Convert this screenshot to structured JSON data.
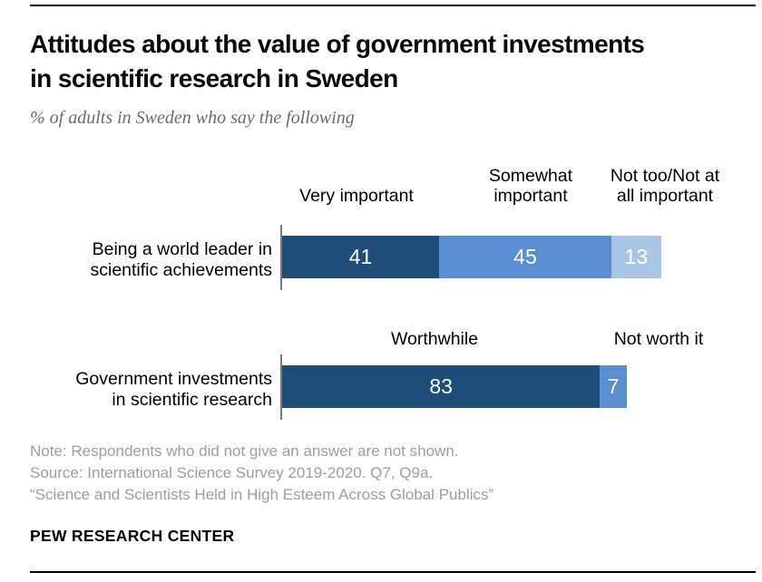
{
  "header": {
    "title_line1": "Attitudes about the value of government investments",
    "title_line2": "in scientific research in Sweden",
    "subtitle": "% of adults in Sweden who say the following"
  },
  "chart_data": {
    "type": "bar",
    "orientation": "horizontal_stacked",
    "unit": "percent",
    "xlim": [
      0,
      100
    ],
    "grid": false,
    "legend_position": "column-headers-above-bars",
    "colors": [
      "#1f4d7a",
      "#5a8ed2",
      "#a9c6e8"
    ],
    "value_label_color": "#ffffff",
    "rows": [
      {
        "category": "Being a world leader in scientific achievements",
        "category_lines": [
          "Being a world leader in",
          "scientific achievements"
        ],
        "series": [
          {
            "name": "Very important",
            "name_lines": [
              "Very important"
            ],
            "value": 41
          },
          {
            "name": "Somewhat important",
            "name_lines": [
              "Somewhat",
              "important"
            ],
            "value": 45
          },
          {
            "name": "Not too/Not at all important",
            "name_lines": [
              "Not too/Not at",
              "all important"
            ],
            "value": 13
          }
        ]
      },
      {
        "category": "Government investments in scientific research",
        "category_lines": [
          "Government investments",
          "in scientific research"
        ],
        "series": [
          {
            "name": "Worthwhile",
            "name_lines": [
              "Worthwhile"
            ],
            "value": 83
          },
          {
            "name": "Not worth it",
            "name_lines": [
              "Not worth it"
            ],
            "value": 7
          }
        ]
      }
    ]
  },
  "footer": {
    "note": "Note: Respondents who did not give an answer are not shown.",
    "source": "Source: International Science Survey 2019-2020. Q7, Q9a.",
    "quote": "“Science and Scientists Held in High Esteem Across Global Publics”",
    "brand": "PEW RESEARCH CENTER"
  }
}
